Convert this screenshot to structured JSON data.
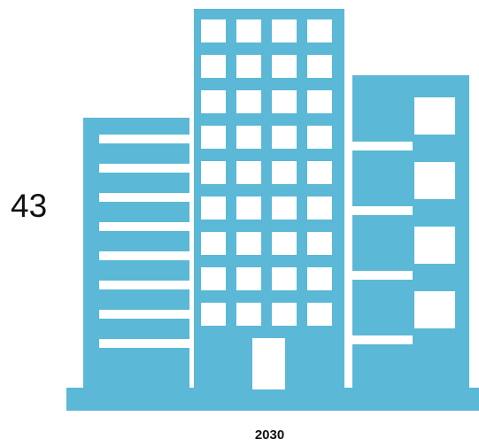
{
  "figure": {
    "value_label": "43",
    "year_label": "2030",
    "icon_name": "city-buildings-icon",
    "colors": {
      "building": "#5bb8d6",
      "window": "#ffffff",
      "text": "#111111"
    }
  }
}
